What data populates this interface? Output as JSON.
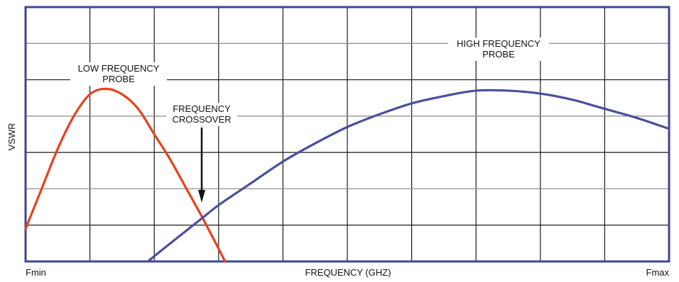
{
  "chart_data": {
    "type": "line",
    "title": "",
    "xlabel": "FREQUENCY (GHZ)",
    "ylabel": "VSWR",
    "x_tick_labels": {
      "start": "Fmin",
      "end": "Fmax"
    },
    "xlim": [
      0,
      10
    ],
    "ylim": [
      0,
      7
    ],
    "grid": true,
    "grid_divisions": {
      "x": 10,
      "y": 7
    },
    "series": [
      {
        "name": "LOW FREQUENCY PROBE",
        "color": "#e8401c",
        "x": [
          0,
          0.25,
          0.5,
          0.75,
          1.0,
          1.25,
          1.5,
          1.75,
          2.0,
          2.25,
          2.5,
          2.75,
          3.0,
          3.1
        ],
        "y": [
          0.9,
          2.0,
          3.1,
          4.0,
          4.6,
          4.75,
          4.6,
          4.2,
          3.5,
          2.8,
          2.0,
          1.2,
          0.35,
          0.0
        ]
      },
      {
        "name": "HIGH FREQUENCY PROBE",
        "color": "#4a4f9c",
        "x": [
          1.9,
          2.25,
          2.5,
          2.75,
          3.0,
          3.5,
          4.0,
          4.5,
          5.0,
          5.5,
          6.0,
          6.5,
          7.0,
          7.5,
          8.0,
          8.5,
          9.0,
          9.5,
          10.0
        ],
        "y": [
          0.0,
          0.5,
          0.85,
          1.2,
          1.55,
          2.15,
          2.75,
          3.25,
          3.7,
          4.05,
          4.35,
          4.55,
          4.7,
          4.7,
          4.62,
          4.45,
          4.2,
          3.95,
          3.65
        ]
      }
    ],
    "annotations": [
      {
        "id": "low",
        "lines": [
          "LOW FREQUENCY",
          "PROBE"
        ]
      },
      {
        "id": "high",
        "lines": [
          "HIGH FREQUENCY",
          "PROBE"
        ]
      },
      {
        "id": "crossover",
        "lines": [
          "FREQUENCY",
          "CROSSOVER"
        ]
      }
    ]
  }
}
